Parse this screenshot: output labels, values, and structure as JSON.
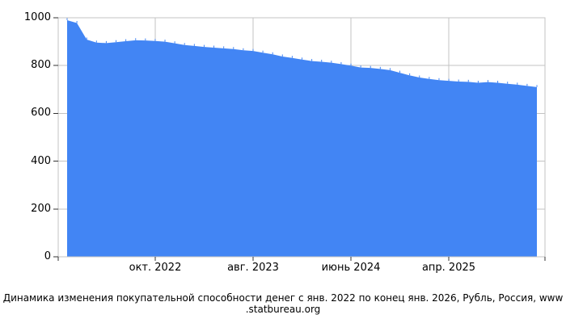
{
  "chart_data": {
    "type": "area",
    "title": "Динамика изменения покупательной способности денег с янв. 2022 по конец янв. 2026, Рубль, Россия, www.statbureau.org",
    "xlabel": "",
    "ylabel": "",
    "ylim": [
      0,
      1000
    ],
    "grid": true,
    "legend_position": "none",
    "x": [
      "2022-01",
      "2022-02",
      "2022-03",
      "2022-04",
      "2022-05",
      "2022-06",
      "2022-07",
      "2022-08",
      "2022-09",
      "2022-10",
      "2022-11",
      "2022-12",
      "2023-01",
      "2023-02",
      "2023-03",
      "2023-04",
      "2023-05",
      "2023-06",
      "2023-07",
      "2023-08",
      "2023-09",
      "2023-10",
      "2023-11",
      "2023-12",
      "2024-01",
      "2024-02",
      "2024-03",
      "2024-04",
      "2024-05",
      "2024-06",
      "2024-07",
      "2024-08",
      "2024-09",
      "2024-10",
      "2024-11",
      "2024-12",
      "2025-01",
      "2025-02",
      "2025-03",
      "2025-04",
      "2025-05",
      "2025-06",
      "2025-07",
      "2025-08",
      "2025-09",
      "2025-10",
      "2025-11",
      "2025-12",
      "2026-01"
    ],
    "values": [
      990,
      978,
      909,
      896,
      894,
      898,
      902,
      906,
      905,
      903,
      900,
      893,
      886,
      882,
      878,
      875,
      872,
      869,
      864,
      861,
      854,
      847,
      838,
      832,
      825,
      819,
      816,
      812,
      806,
      800,
      792,
      790,
      786,
      781,
      770,
      759,
      750,
      744,
      739,
      736,
      733,
      732,
      728,
      731,
      728,
      724,
      720,
      715,
      710
    ],
    "y_tick_values": [
      1000,
      800,
      600,
      400,
      200,
      0
    ],
    "y_tick_labels": [
      "1000",
      "800",
      "600",
      "400",
      "200",
      "0"
    ],
    "x_ticks": [
      {
        "label": "окт. 2022",
        "month_index": 9
      },
      {
        "label": "авг. 2023",
        "month_index": 19
      },
      {
        "label": "июнь 2024",
        "month_index": 29
      },
      {
        "label": "апр. 2025",
        "month_index": 39
      }
    ],
    "colors": {
      "area": "#4285f4",
      "grid": "#c3c3c3",
      "tick": "#333333",
      "text": "#000000",
      "background": "#ffffff"
    }
  },
  "caption": {
    "line1": "Динамика изменения покупательной способности денег с янв. 2022 по конец янв. 2026, Рубль, Россия, www",
    "line2": ".statbureau.org"
  }
}
